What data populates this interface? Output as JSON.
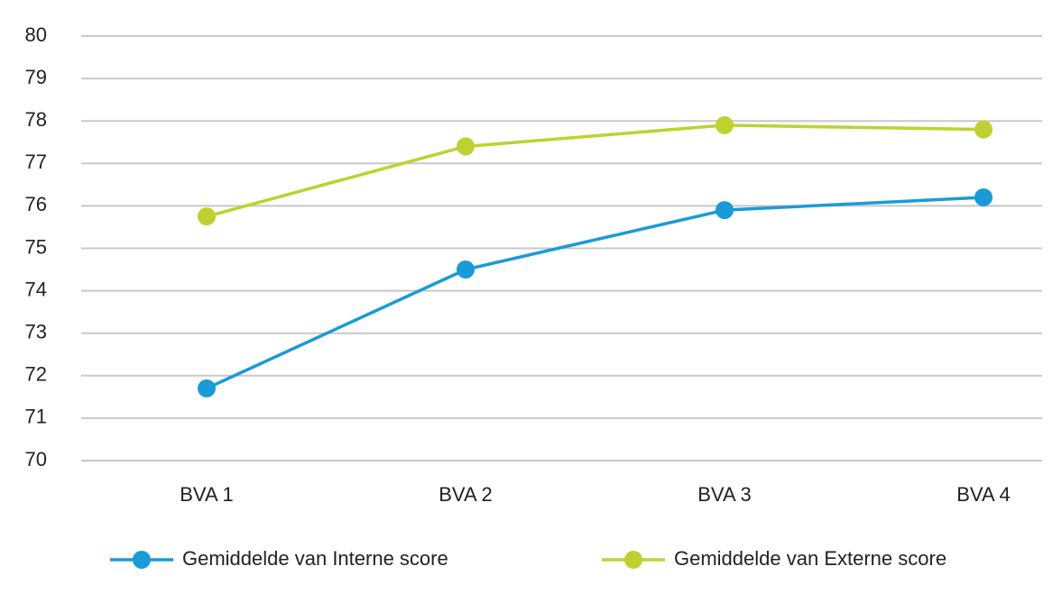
{
  "chart_data": {
    "type": "line",
    "categories": [
      "BVA 1",
      "BVA 2",
      "BVA 3",
      "BVA 4"
    ],
    "series": [
      {
        "name": "Gemiddelde van Interne score",
        "color": "#1a9bd7",
        "values": [
          71.7,
          74.5,
          75.9,
          76.2
        ]
      },
      {
        "name": "Gemiddelde van Externe score",
        "color": "#bfd130",
        "values": [
          75.75,
          77.4,
          77.9,
          77.8
        ]
      }
    ],
    "ylim": [
      70,
      80
    ],
    "yticks": [
      70,
      71,
      72,
      73,
      74,
      75,
      76,
      77,
      78,
      79,
      80
    ],
    "grid": true,
    "legend": "bottom"
  }
}
